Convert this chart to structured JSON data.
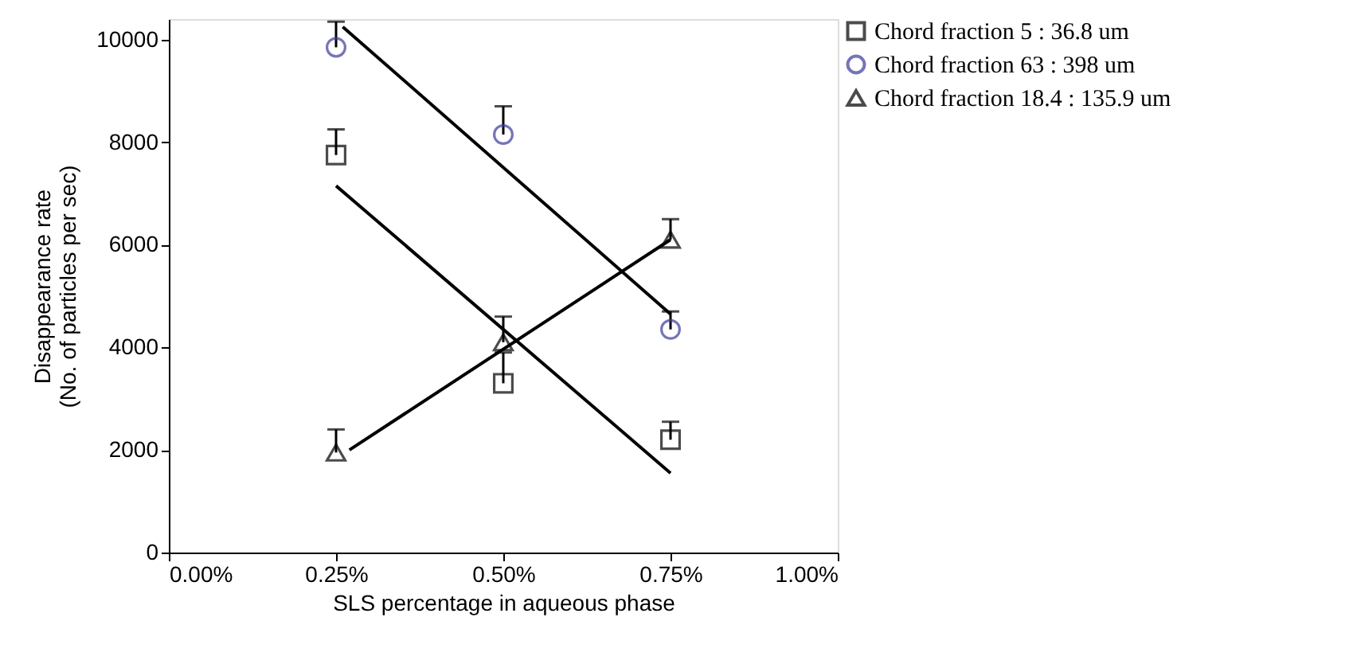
{
  "chart_data": {
    "type": "scatter",
    "xlabel": "SLS percentage in aqueous phase",
    "ylabel": "Disappearance rate\n(No. of particles per sec)",
    "xlim": [
      0,
      1
    ],
    "xticks": [
      {
        "value": 0,
        "label": "0.00%"
      },
      {
        "value": 0.25,
        "label": "0.25%"
      },
      {
        "value": 0.5,
        "label": "0.50%"
      },
      {
        "value": 0.75,
        "label": "0.75%"
      },
      {
        "value": 1,
        "label": "1.00%"
      }
    ],
    "ylim": [
      0,
      10400
    ],
    "yticks": [
      0,
      2000,
      4000,
      6000,
      8000,
      10000
    ],
    "grid": false,
    "legend": "right",
    "series": [
      {
        "name": "Chord fraction 5 : 36.8 um",
        "marker": "square",
        "color": "#000000",
        "x": [
          0.25,
          0.5,
          0.75
        ],
        "values": [
          7750,
          3300,
          2200
        ],
        "errors": [
          [
            7750,
            8250
          ],
          [
            3300,
            3900
          ],
          [
            2200,
            2550
          ]
        ]
      },
      {
        "name": "Chord fraction 63 : 398 um",
        "marker": "circle",
        "color": "#3c3c9c",
        "x": [
          0.25,
          0.5,
          0.75
        ],
        "values": [
          9850,
          8150,
          4350
        ],
        "errors": [
          [
            9850,
            10350
          ],
          [
            8150,
            8700
          ],
          [
            4350,
            4700
          ]
        ]
      },
      {
        "name": "Chord fraction 18.4 : 135.9 um",
        "marker": "triangle",
        "color": "#000000",
        "x": [
          0.25,
          0.5,
          0.75
        ],
        "values": [
          1950,
          4100,
          6100
        ],
        "errors": [
          [
            1950,
            2400
          ],
          [
            4100,
            4600
          ],
          [
            6100,
            6500
          ]
        ]
      },
      {
        "type": "line",
        "color": "#000000",
        "x": [
          0.25,
          0.75
        ],
        "values": [
          7150,
          1550
        ]
      },
      {
        "type": "line",
        "color": "#000000",
        "x": [
          0.26,
          0.75
        ],
        "values": [
          10250,
          4650
        ]
      },
      {
        "type": "line",
        "color": "#000000",
        "x": [
          0.27,
          0.75
        ],
        "values": [
          2000,
          6100
        ]
      }
    ]
  }
}
